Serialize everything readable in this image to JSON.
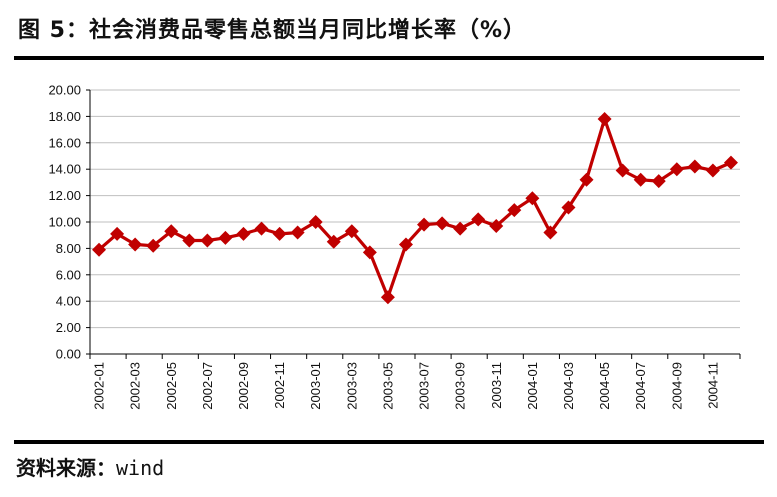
{
  "title": "图 5：社会消费品零售总额当月同比增长率（%）",
  "source": {
    "label": "资料来源：",
    "value": "wind"
  },
  "chart_data": {
    "type": "line",
    "series_color": "#c00000",
    "ylim": [
      0,
      20
    ],
    "y_ticks": [
      "0.00",
      "2.00",
      "4.00",
      "6.00",
      "8.00",
      "10.00",
      "12.00",
      "14.00",
      "16.00",
      "18.00",
      "20.00"
    ],
    "x_tick_labels": [
      "2002-01",
      "2002-03",
      "2002-05",
      "2002-07",
      "2002-09",
      "2002-11",
      "2003-01",
      "2003-03",
      "2003-05",
      "2003-07",
      "2003-09",
      "2003-11",
      "2004-01",
      "2004-03",
      "2004-05",
      "2004-07",
      "2004-09",
      "2004-11"
    ],
    "grid": true,
    "x": [
      "2002-01",
      "2002-02",
      "2002-03",
      "2002-04",
      "2002-05",
      "2002-06",
      "2002-07",
      "2002-08",
      "2002-09",
      "2002-10",
      "2002-11",
      "2002-12",
      "2003-01",
      "2003-02",
      "2003-03",
      "2003-04",
      "2003-05",
      "2003-06",
      "2003-07",
      "2003-08",
      "2003-09",
      "2003-10",
      "2003-11",
      "2003-12",
      "2004-01",
      "2004-02",
      "2004-03",
      "2004-04",
      "2004-05",
      "2004-06",
      "2004-07",
      "2004-08",
      "2004-09",
      "2004-10",
      "2004-11",
      "2004-12"
    ],
    "values": [
      7.9,
      9.1,
      8.3,
      8.2,
      9.3,
      8.6,
      8.6,
      8.8,
      9.1,
      9.5,
      9.1,
      9.2,
      10.0,
      8.5,
      9.3,
      7.7,
      4.3,
      8.3,
      9.8,
      9.9,
      9.5,
      10.2,
      9.7,
      10.9,
      11.8,
      9.2,
      11.1,
      13.2,
      17.8,
      13.9,
      13.2,
      13.1,
      14.0,
      14.2,
      13.9,
      14.5
    ]
  }
}
